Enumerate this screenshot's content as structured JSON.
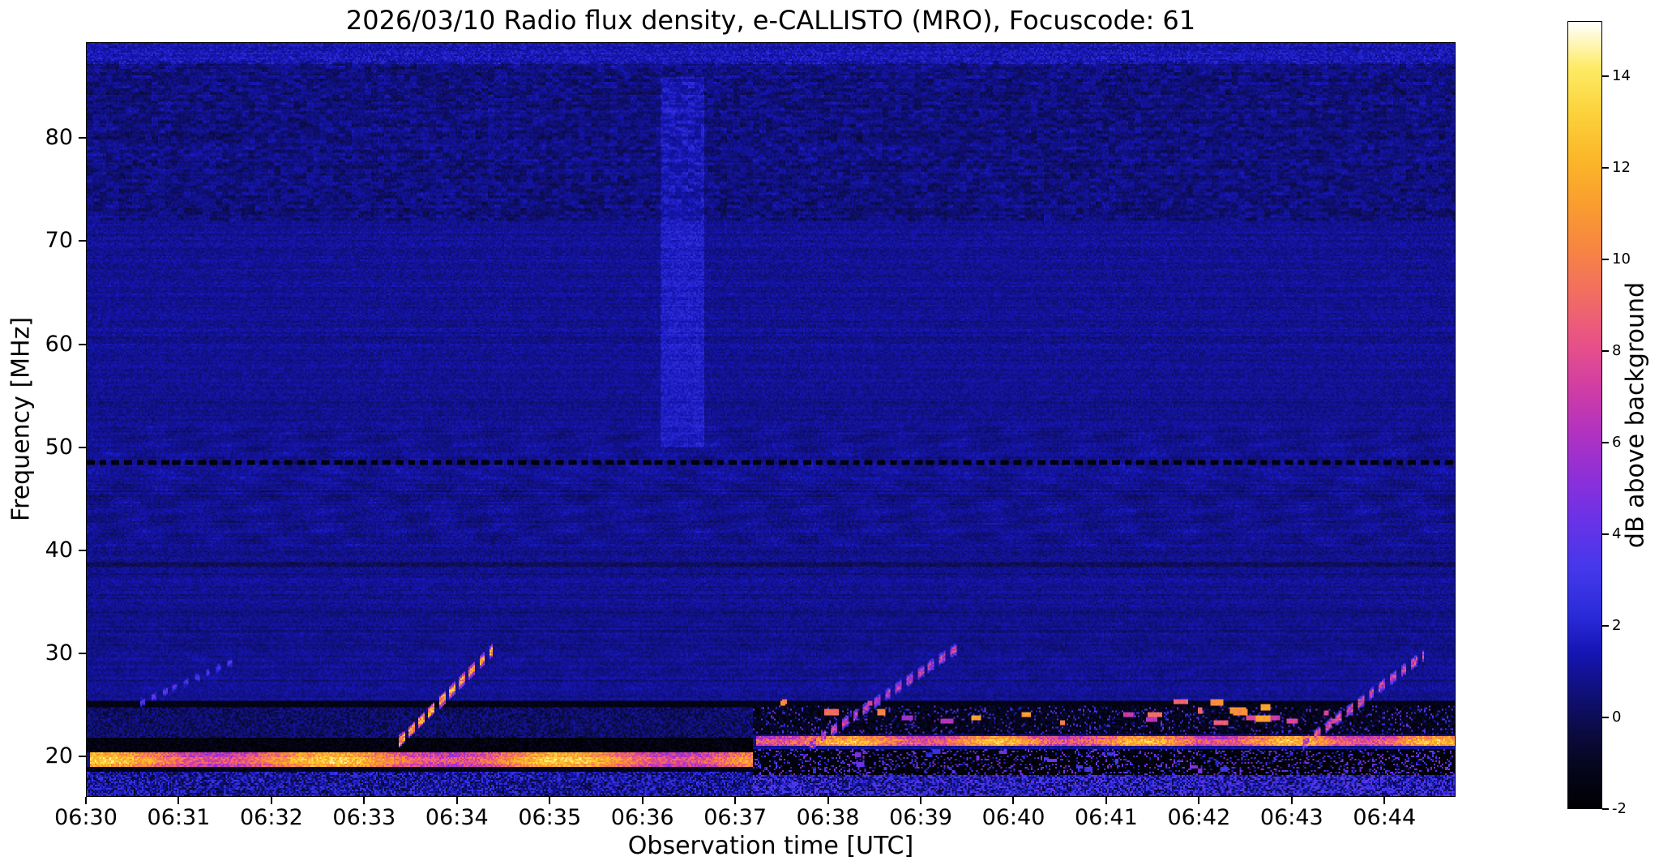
{
  "chart_data": {
    "type": "heatmap",
    "title": "2026/03/10  Radio flux density, e-CALLISTO (MRO), Focuscode: 61",
    "xlabel": "Observation time [UTC]",
    "ylabel": "Frequency [MHz]",
    "x_ticks": [
      "06:30",
      "06:31",
      "06:32",
      "06:33",
      "06:34",
      "06:35",
      "06:36",
      "06:37",
      "06:38",
      "06:39",
      "06:40",
      "06:41",
      "06:42",
      "06:43",
      "06:44"
    ],
    "x_tick_seconds": [
      0,
      60,
      120,
      180,
      240,
      300,
      360,
      420,
      480,
      540,
      600,
      660,
      720,
      780,
      840
    ],
    "x_span_seconds": 886,
    "x_start": "06:30",
    "x_end": "06:44:46",
    "y_ticks": [
      80,
      70,
      60,
      50,
      40,
      30,
      20
    ],
    "y_range": [
      16.1,
      89.3
    ],
    "grid": false,
    "legend": "none",
    "colorbar": {
      "label": "dB above background",
      "ticks": [
        14,
        12,
        10,
        8,
        6,
        4,
        2,
        0,
        -2
      ],
      "range": [
        -2,
        15.2
      ],
      "stops": [
        [
          -2.0,
          "#000004"
        ],
        [
          -1.2,
          "#05051a"
        ],
        [
          -0.4,
          "#0a0a3e"
        ],
        [
          0.6,
          "#10107e"
        ],
        [
          1.4,
          "#1515b4"
        ],
        [
          2.2,
          "#2a2ad8"
        ],
        [
          3.2,
          "#4338ea"
        ],
        [
          4.2,
          "#6633e8"
        ],
        [
          5.2,
          "#8c2fd9"
        ],
        [
          6.2,
          "#b132c1"
        ],
        [
          7.2,
          "#d13da4"
        ],
        [
          8.2,
          "#e85287"
        ],
        [
          9.2,
          "#f26c63"
        ],
        [
          10.2,
          "#f78443"
        ],
        [
          11.2,
          "#fa9d2f"
        ],
        [
          12.2,
          "#fbb729"
        ],
        [
          13.2,
          "#fcd23b"
        ],
        [
          14.2,
          "#fdeb66"
        ],
        [
          15.2,
          "#ffffff"
        ]
      ]
    },
    "background_level_db": 0.9,
    "features": [
      {
        "type": "band",
        "t0": 0,
        "t1": 886,
        "f0": 87.3,
        "f1": 89.3,
        "dv": 0.55,
        "noise": 0.5
      },
      {
        "type": "top_mottle",
        "f0": 72,
        "f1": 87.5,
        "dv": -0.3,
        "amp": 1.15
      },
      {
        "type": "ripples",
        "f0": 40.5,
        "f1": 52,
        "amp": 0.3
      },
      {
        "type": "ripples",
        "f0": 26.5,
        "f1": 33,
        "amp": 0.14
      },
      {
        "type": "hline",
        "f": 38.6,
        "halfw": 0.2,
        "dv": -0.75
      },
      {
        "type": "hline",
        "f": 48.55,
        "halfw": 0.3,
        "v": -1.7,
        "dash": [
          5,
          3
        ]
      },
      {
        "type": "vband",
        "t0": 372,
        "t1": 400,
        "f0": 50,
        "f1": 86,
        "dv": 0.9
      },
      {
        "type": "band",
        "t0": 0,
        "t1": 886,
        "f0": 16.1,
        "f1": 18.4,
        "v": 1.1,
        "noise": 2.0
      },
      {
        "type": "band",
        "t0": 0,
        "t1": 432,
        "f0": 21.8,
        "f1": 24.8,
        "v": 0.2,
        "noise": 1.0
      },
      {
        "type": "hline",
        "f": 25.05,
        "halfw": 0.3,
        "v": -1.4
      },
      {
        "type": "band",
        "t0": 0,
        "t1": 432,
        "f0": 20.4,
        "f1": 21.7,
        "v": -1.6,
        "noise": 0.7
      },
      {
        "type": "band",
        "t0": 0,
        "t1": 432,
        "f0": 18.45,
        "f1": 18.9,
        "v": -1.3,
        "noise": 0.6
      },
      {
        "type": "bright_band",
        "t0": 2,
        "t1": 431,
        "f0": 18.9,
        "f1": 20.35,
        "v": 9.2,
        "noise": 1.8,
        "wamp": 2.6,
        "wper": 150,
        "wph": 1.2
      },
      {
        "type": "band",
        "t0": 432,
        "t1": 886,
        "f0": 18.1,
        "f1": 20.7,
        "v": -1.8,
        "noise": 0.5,
        "speckle": 0.2,
        "sv": 3.2,
        "snoise": 2.4
      },
      {
        "type": "band",
        "t0": 432,
        "t1": 886,
        "f0": 22.1,
        "f1": 24.9,
        "v": -1.2,
        "noise": 0.8,
        "speckle": 0.1,
        "sv": 3.0,
        "snoise": 2.0
      },
      {
        "type": "band",
        "t0": 432,
        "t1": 886,
        "f0": 16.1,
        "f1": 18.1,
        "v": 1.8,
        "noise": 2.6
      },
      {
        "type": "bright_band",
        "t0": 434,
        "t1": 886,
        "f0": 20.9,
        "f1": 21.95,
        "v": 9.0,
        "noise": 2.0,
        "wamp": 2.2,
        "wper": 95,
        "wph": 0.3
      },
      {
        "type": "dashes",
        "t0": 445,
        "t1": 880,
        "f0": 23.0,
        "f1": 25.3,
        "count": 26,
        "v": 8.5,
        "jitter": 3,
        "lmin": 3,
        "lmax": 10,
        "h": 0.5,
        "seed": 7
      },
      {
        "type": "dashes",
        "t0": 455,
        "t1": 886,
        "f0": 18.3,
        "f1": 20.5,
        "count": 18,
        "v": 3.5,
        "jitter": 1.5,
        "lmin": 2,
        "lmax": 6,
        "h": 0.4,
        "seed": 21
      },
      {
        "type": "diag",
        "t0": 35,
        "f0": 25.2,
        "t1": 95,
        "f1": 29.2,
        "w": 0.4,
        "v": 3.2,
        "noise": 1.4,
        "dash": [
          3,
          4
        ]
      },
      {
        "type": "diag",
        "t0": 202,
        "f0": 21.3,
        "t1": 263,
        "f1": 30.3,
        "w": 0.6,
        "v": 11,
        "noise": 3,
        "dash": [
          4,
          2.5
        ]
      },
      {
        "type": "diag",
        "t0": 468,
        "f0": 21.0,
        "t1": 563,
        "f1": 30.4,
        "w": 0.55,
        "v": 6.5,
        "noise": 2.6,
        "dash": [
          4,
          3
        ]
      },
      {
        "type": "diag",
        "t0": 788,
        "f0": 21.2,
        "t1": 866,
        "f1": 29.8,
        "w": 0.55,
        "v": 7.0,
        "noise": 2.6,
        "dash": [
          4,
          3
        ]
      }
    ]
  }
}
